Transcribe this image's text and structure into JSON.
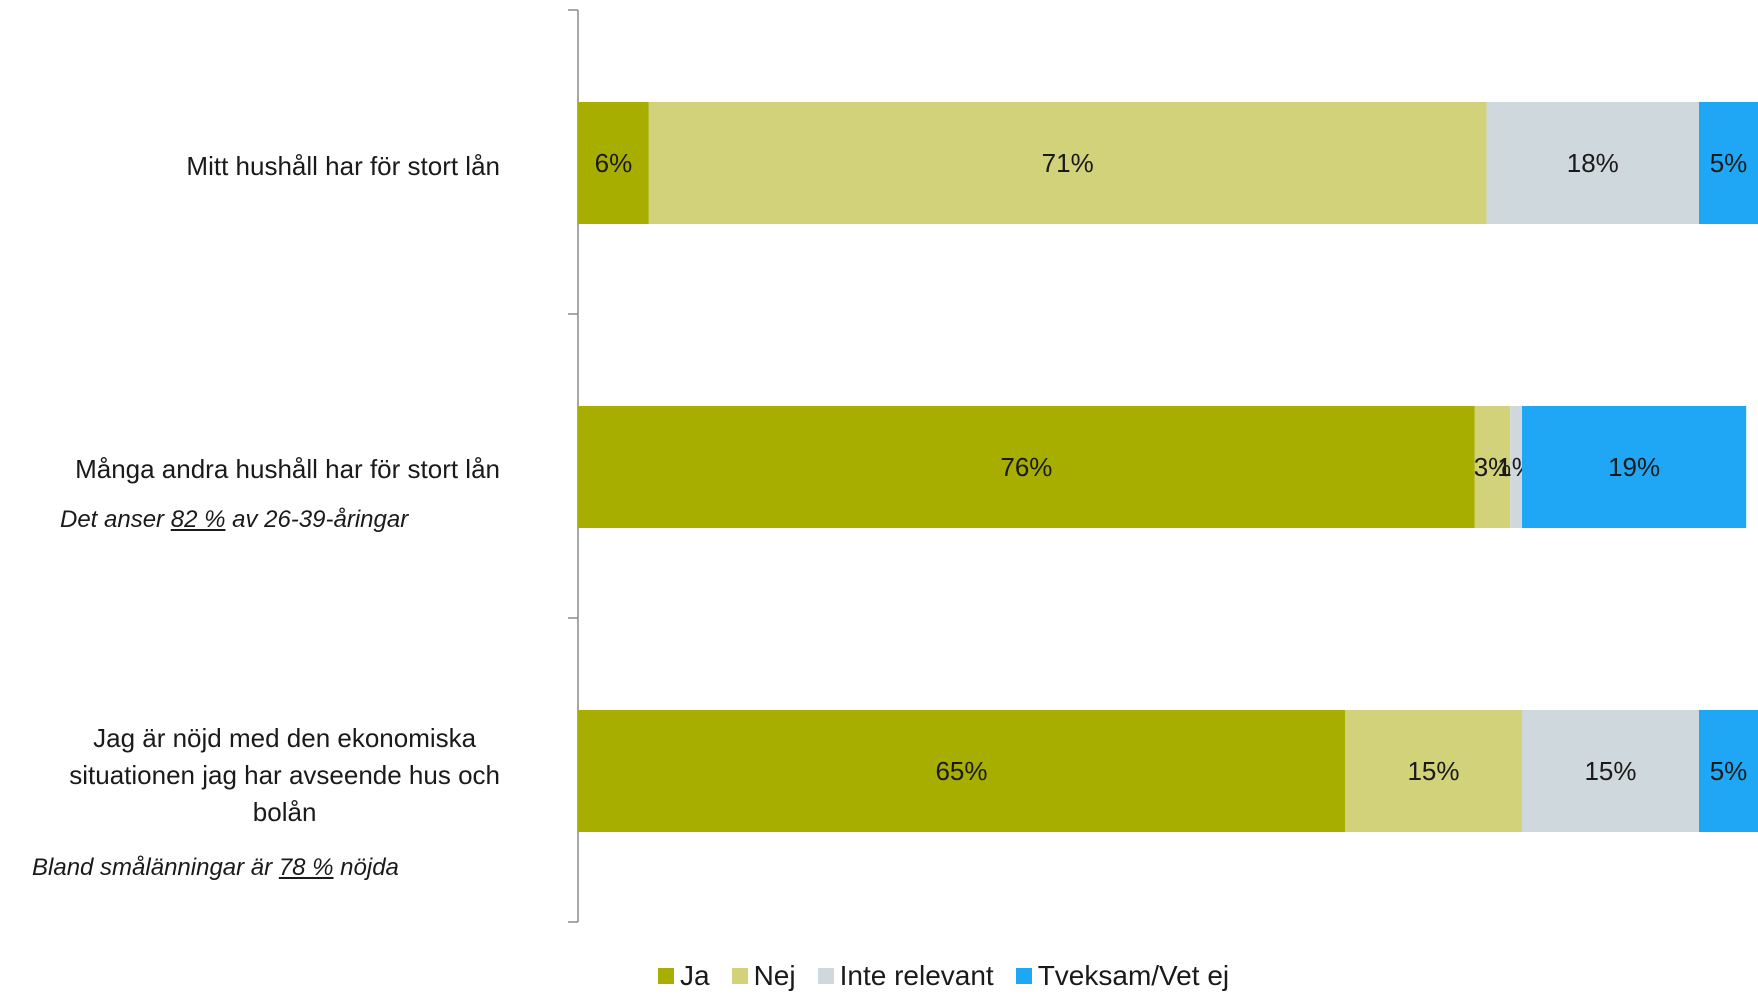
{
  "chart_data": {
    "type": "bar",
    "orientation": "horizontal",
    "stacked": "percent",
    "categories": [
      "Mitt hushåll har för stort lån",
      "Många andra hushåll har för stort lån",
      "Jag är nöjd med den ekonomiska situationen jag har avseende hus och bolån"
    ],
    "series": [
      {
        "name": "Ja",
        "color": "#a8ae00",
        "values": [
          6,
          76,
          65
        ]
      },
      {
        "name": "Nej",
        "color": "#d1d27a",
        "values": [
          71,
          3,
          15
        ]
      },
      {
        "name": "Inte relevant",
        "color": "#cfd8dc",
        "values": [
          18,
          1,
          15
        ]
      },
      {
        "name": "Tveksam/Vet ej",
        "color": "#1fa7f5",
        "values": [
          5,
          19,
          5
        ]
      }
    ],
    "data_label_suffix": "%",
    "legend_position": "bottom",
    "grid": false
  },
  "labels": {
    "cat1": "Mitt hushåll har för stort lån",
    "cat2": "Många andra hushåll har för stort lån",
    "cat3_line1": "Jag är nöjd med den ekonomiska",
    "cat3_line2": "situationen jag har avseende hus och",
    "cat3_line3": "bolån"
  },
  "notes": {
    "note1_pre": "Det anser ",
    "note1_value": "82 %",
    "note1_post": " av 26-39-åringar",
    "note2_pre": "Bland smålänningar är ",
    "note2_value": "78 %",
    "note2_post": " nöjda"
  },
  "legend": [
    {
      "label": "Ja",
      "color": "#a8ae00"
    },
    {
      "label": "Nej",
      "color": "#d1d27a"
    },
    {
      "label": "Inte relevant",
      "color": "#cfd8dc"
    },
    {
      "label": "Tveksam/Vet ej",
      "color": "#1fa7f5"
    }
  ]
}
